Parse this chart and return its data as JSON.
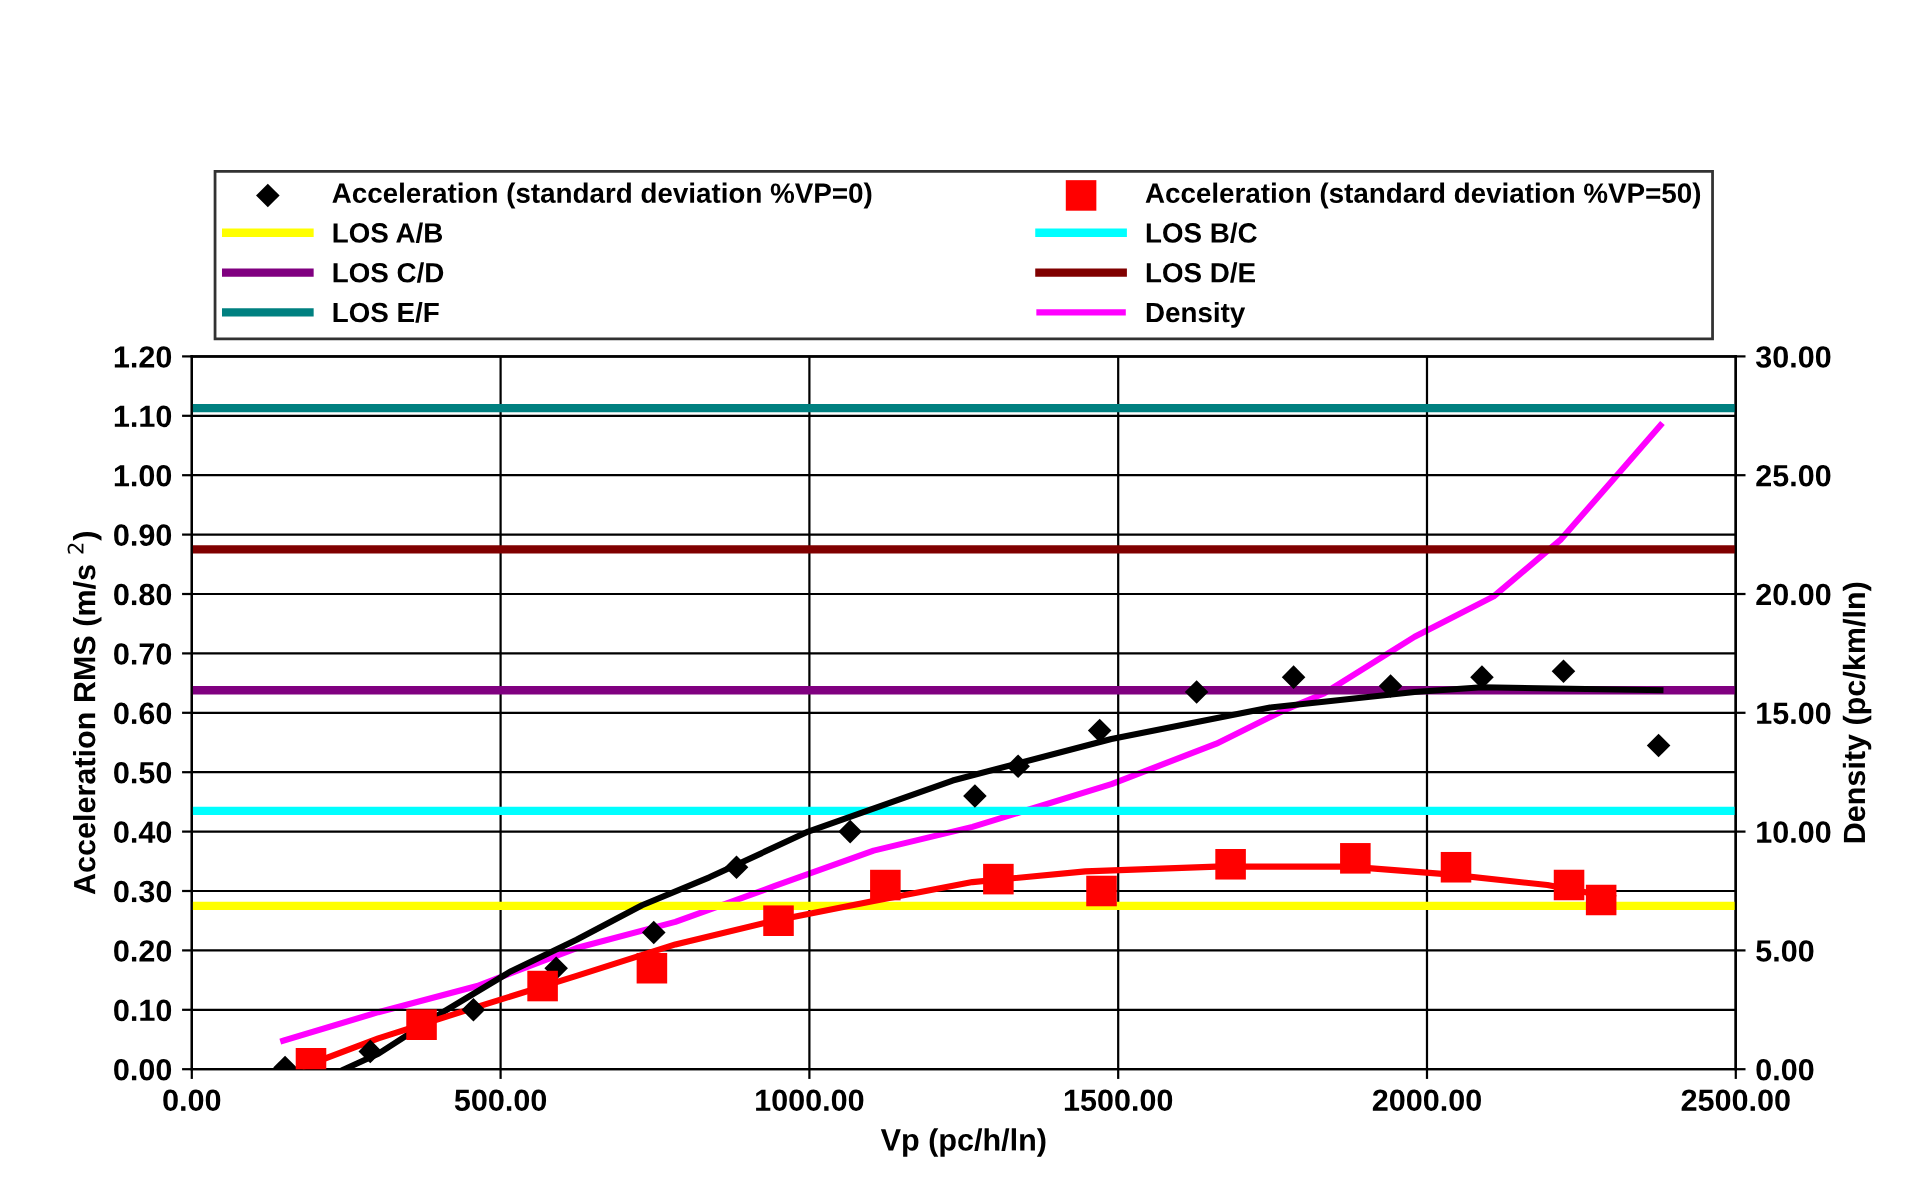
{
  "chart_data": {
    "type": "scatter",
    "xlabel": "Vp (pc/h/ln)",
    "ylabel": "Acceleration RMS (m/s $^{2}$)",
    "y2label": "Density (pc/km/ln)",
    "xlim": [
      0,
      2500
    ],
    "xticks": [
      {
        "value": 0,
        "label": "0.00"
      },
      {
        "value": 500,
        "label": "500.00"
      },
      {
        "value": 1000,
        "label": "1000.00"
      },
      {
        "value": 1500,
        "label": "1500.00"
      },
      {
        "value": 2000,
        "label": "2000.00"
      },
      {
        "value": 2500,
        "label": "2500.00"
      }
    ],
    "ylim": [
      0,
      1.2
    ],
    "yticks": [
      {
        "value": 0,
        "label": "0.00"
      },
      {
        "value": 0.1,
        "label": "0.10"
      },
      {
        "value": 0.2,
        "label": "0.20"
      },
      {
        "value": 0.3,
        "label": "0.30"
      },
      {
        "value": 0.4,
        "label": "0.40"
      },
      {
        "value": 0.5,
        "label": "0.50"
      },
      {
        "value": 0.6,
        "label": "0.60"
      },
      {
        "value": 0.7,
        "label": "0.70"
      },
      {
        "value": 0.8,
        "label": "0.80"
      },
      {
        "value": 0.9,
        "label": "0.90"
      },
      {
        "value": 1.0,
        "label": "1.00"
      },
      {
        "value": 1.1,
        "label": "1.10"
      },
      {
        "value": 1.2,
        "label": "1.20"
      }
    ],
    "y2lim": [
      0,
      30
    ],
    "y2ticks": [
      {
        "value": 0,
        "label": "0.00"
      },
      {
        "value": 5,
        "label": "5.00"
      },
      {
        "value": 10,
        "label": "10.00"
      },
      {
        "value": 15,
        "label": "15.00"
      },
      {
        "value": 20,
        "label": "20.00"
      },
      {
        "value": 25,
        "label": "25.00"
      },
      {
        "value": 30,
        "label": "30.00"
      }
    ],
    "grid": true,
    "legend": "top",
    "series": [
      {
        "name": "Acceleration (standard deviation %VP=0)",
        "marker": "diamond",
        "color": "#000000",
        "x": [
          151,
          289,
          456,
          590,
          748,
          882,
          1066,
          1268,
          1338,
          1470,
          1627,
          1784,
          1941,
          2089,
          2221,
          2375
        ],
        "values": [
          0.003,
          0.03,
          0.1,
          0.17,
          0.23,
          0.34,
          0.4,
          0.46,
          0.51,
          0.57,
          0.635,
          0.66,
          0.645,
          0.66,
          0.67,
          0.545
        ]
      },
      {
        "name": "Acceleration (standard deviation %VP=50)",
        "type": "scatter",
        "marker": "square",
        "color": "#ff0000",
        "x": [
          193,
          372,
          568,
          745,
          950,
          1123,
          1306,
          1473,
          1682,
          1884,
          2047,
          2230,
          2282
        ],
        "values": [
          0.01,
          0.075,
          0.14,
          0.17,
          0.25,
          0.31,
          0.32,
          0.3,
          0.345,
          0.355,
          0.34,
          0.31,
          0.285
        ]
      },
      {
        "type": "line",
        "color": "#000000",
        "x": [
          247,
          302,
          408,
          517,
          623,
          729,
          838,
          998,
          1232,
          1489,
          1746,
          1980,
          2089,
          2378
        ],
        "values": [
          0,
          0.026,
          0.097,
          0.165,
          0.218,
          0.276,
          0.323,
          0.4,
          0.486,
          0.556,
          0.609,
          0.635,
          0.643,
          0.638
        ]
      },
      {
        "type": "line",
        "color": "#ff0000",
        "x": [
          183,
          302,
          462,
          623,
          783,
          943,
          1104,
          1264,
          1447,
          1659,
          1874,
          2035,
          2195,
          2301
        ],
        "values": [
          0.005,
          0.052,
          0.105,
          0.157,
          0.21,
          0.25,
          0.283,
          0.315,
          0.333,
          0.341,
          0.341,
          0.328,
          0.31,
          0.289
        ]
      },
      {
        "name": "Density",
        "type": "line",
        "axis": "y2",
        "color": "#ff00ff",
        "x": [
          148,
          302,
          462,
          623,
          783,
          943,
          1104,
          1264,
          1489,
          1659,
          1768,
          1832,
          1980,
          2108,
          2217,
          2301,
          2378
        ],
        "values": [
          1.2,
          2.4,
          3.5,
          5.1,
          6.2,
          7.7,
          9.2,
          10.2,
          12.0,
          13.7,
          15.1,
          15.8,
          18.2,
          19.9,
          22.3,
          24.8,
          27.1
        ]
      }
    ],
    "ref_lines": [
      {
        "axis": "y",
        "value": 0.275,
        "label": "LOS A/B",
        "color": "#ffff00"
      },
      {
        "axis": "y",
        "value": 0.435,
        "label": "LOS B/C",
        "color": "#00ffff"
      },
      {
        "axis": "y",
        "value": 0.638,
        "label": "LOS C/D",
        "color": "#800080"
      },
      {
        "axis": "y",
        "value": 0.875,
        "label": "LOS D/E",
        "color": "#800000"
      },
      {
        "axis": "y",
        "value": 1.113,
        "label": "LOS E/F",
        "color": "#008080"
      }
    ]
  }
}
